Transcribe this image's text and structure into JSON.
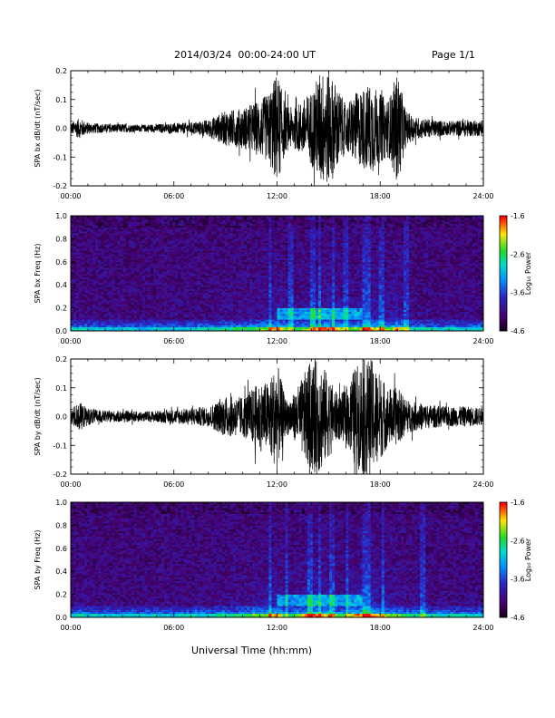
{
  "header": {
    "title": "2014/03/24  00:00-24:00 UT",
    "page": "Page 1/1"
  },
  "footer": {
    "xlabel": "Universal Time (hh:mm)"
  },
  "chart_data": [
    {
      "type": "line",
      "ylabel": "SPA bx dB/dt (nT/sec)",
      "xlabel": "",
      "x_ticks": [
        "00:00",
        "06:00",
        "12:00",
        "18:00",
        "24:00"
      ],
      "x_range_hours": [
        0,
        24
      ],
      "ylim": [
        -0.2,
        0.2
      ],
      "y_ticks": [
        "-0.2",
        "-0.1",
        "0.0",
        "0.1",
        "0.2"
      ],
      "envelope": {
        "hours": [
          0,
          0.5,
          1,
          2,
          3,
          4,
          5,
          6,
          7,
          8,
          9,
          10,
          11,
          11.5,
          12,
          12.5,
          13,
          13.5,
          14,
          14.5,
          15,
          15.5,
          16,
          16.5,
          17,
          17.5,
          18,
          18.5,
          19,
          19.5,
          20,
          21,
          22,
          23,
          24
        ],
        "amplitude": [
          0.02,
          0.035,
          0.02,
          0.015,
          0.015,
          0.012,
          0.015,
          0.018,
          0.02,
          0.03,
          0.06,
          0.07,
          0.1,
          0.12,
          0.2,
          0.08,
          0.07,
          0.1,
          0.13,
          0.2,
          0.2,
          0.15,
          0.08,
          0.12,
          0.14,
          0.16,
          0.12,
          0.1,
          0.2,
          0.06,
          0.04,
          0.03,
          0.025,
          0.03,
          0.025
        ]
      }
    },
    {
      "type": "heatmap",
      "ylabel": "SPA bx Freq (Hz)",
      "x_ticks": [
        "00:00",
        "06:00",
        "12:00",
        "18:00",
        "24:00"
      ],
      "ylim": [
        0,
        1
      ],
      "y_ticks": [
        "0.0",
        "0.2",
        "0.4",
        "0.6",
        "0.8",
        "1.0"
      ],
      "colorbar": {
        "label": "Log₁₀ Power",
        "range": [
          -4.6,
          -1.6
        ],
        "ticks": [
          "-1.6",
          "-2.6",
          "-3.6",
          "-4.6"
        ]
      },
      "enhancement_band": {
        "hours": [
          12,
          17
        ],
        "freq_hz": [
          0.1,
          0.2
        ]
      },
      "vertical_streaks_hours": [
        11.6,
        12.8,
        14.1,
        14.5,
        15.3,
        16.0,
        17.1,
        17.4,
        18.1,
        19.5
      ]
    },
    {
      "type": "line",
      "ylabel": "SPA by dB/dt (nT/sec)",
      "xlabel": "",
      "x_ticks": [
        "00:00",
        "06:00",
        "12:00",
        "18:00",
        "24:00"
      ],
      "x_range_hours": [
        0,
        24
      ],
      "ylim": [
        -0.2,
        0.2
      ],
      "y_ticks": [
        "-0.2",
        "-0.1",
        "0.0",
        "0.1",
        "0.2"
      ],
      "envelope": {
        "hours": [
          0,
          0.5,
          1,
          2,
          3,
          4,
          5,
          6,
          7,
          8,
          9,
          10,
          11,
          11.5,
          12,
          12.5,
          13,
          13.5,
          14,
          14.5,
          15,
          15.5,
          16,
          16.5,
          17,
          17.5,
          18,
          18.5,
          19,
          19.5,
          20,
          21,
          22,
          23,
          24
        ],
        "amplitude": [
          0.03,
          0.05,
          0.03,
          0.02,
          0.02,
          0.018,
          0.02,
          0.025,
          0.03,
          0.035,
          0.07,
          0.07,
          0.12,
          0.12,
          0.19,
          0.06,
          0.08,
          0.14,
          0.2,
          0.2,
          0.14,
          0.08,
          0.09,
          0.17,
          0.2,
          0.2,
          0.15,
          0.1,
          0.1,
          0.06,
          0.05,
          0.04,
          0.035,
          0.035,
          0.03
        ]
      }
    },
    {
      "type": "heatmap",
      "ylabel": "SPA by Freq (Hz)",
      "x_ticks": [
        "00:00",
        "06:00",
        "12:00",
        "18:00",
        "24:00"
      ],
      "ylim": [
        0,
        1
      ],
      "y_ticks": [
        "0.0",
        "0.2",
        "0.4",
        "0.6",
        "0.8",
        "1.0"
      ],
      "colorbar": {
        "label": "Log₁₀ Power",
        "range": [
          -4.6,
          -1.6
        ],
        "ticks": [
          "-1.6",
          "-2.6",
          "-3.6",
          "-4.6"
        ]
      },
      "enhancement_band": {
        "hours": [
          12,
          17
        ],
        "freq_hz": [
          0.1,
          0.2
        ]
      },
      "vertical_streaks_hours": [
        11.6,
        12.6,
        13.9,
        14.5,
        15.2,
        16.1,
        17.1,
        17.4,
        18.2,
        20.5
      ]
    }
  ]
}
